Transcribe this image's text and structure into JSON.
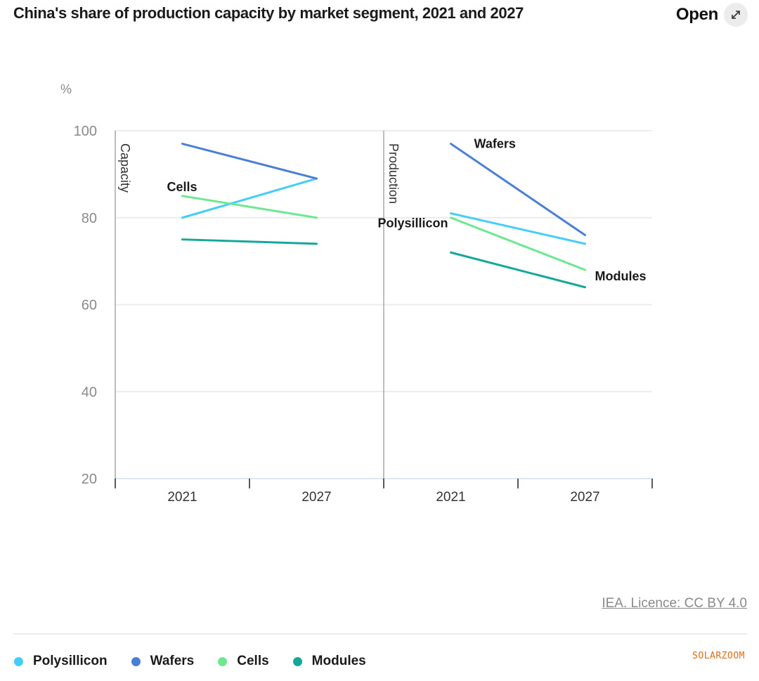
{
  "header": {
    "title": "China's share of production capacity by market segment, 2021 and 2027",
    "open_label": "Open",
    "open_icon": "expand-arrows-icon"
  },
  "footer": {
    "licence": "IEA. Licence: CC BY 4.0",
    "watermark": "SOLARZOOM"
  },
  "legend": [
    {
      "name": "Polysillicon",
      "color": "#45cdfa"
    },
    {
      "name": "Wafers",
      "color": "#4a7fd6"
    },
    {
      "name": "Cells",
      "color": "#6ee890"
    },
    {
      "name": "Modules",
      "color": "#14a89a"
    }
  ],
  "chart_data": {
    "type": "line",
    "title": "China's share of production capacity by market segment, 2021 and 2027",
    "ylabel": "%",
    "xlabel": "",
    "ylim": [
      20,
      100
    ],
    "yticks": [
      20,
      40,
      60,
      80,
      100
    ],
    "grid": true,
    "legend_position": "bottom",
    "panels": [
      {
        "name": "Capacity",
        "categories": [
          "2021",
          "2027"
        ],
        "series": [
          {
            "name": "Polysillicon",
            "values": [
              80,
              89
            ]
          },
          {
            "name": "Wafers",
            "values": [
              97,
              89
            ]
          },
          {
            "name": "Cells",
            "values": [
              85,
              80
            ]
          },
          {
            "name": "Modules",
            "values": [
              75,
              74
            ]
          }
        ],
        "annotations": [
          {
            "text": "Cells",
            "series": "Cells"
          }
        ]
      },
      {
        "name": "Production",
        "categories": [
          "2021",
          "2027"
        ],
        "series": [
          {
            "name": "Polysillicon",
            "values": [
              81,
              74
            ]
          },
          {
            "name": "Wafers",
            "values": [
              97,
              76
            ]
          },
          {
            "name": "Cells",
            "values": [
              80,
              68
            ]
          },
          {
            "name": "Modules",
            "values": [
              72,
              64
            ]
          }
        ],
        "annotations": [
          {
            "text": "Wafers",
            "series": "Wafers"
          },
          {
            "text": "Polysillicon",
            "series": "Polysillicon"
          },
          {
            "text": "Modules",
            "series": "Modules"
          }
        ]
      }
    ]
  }
}
